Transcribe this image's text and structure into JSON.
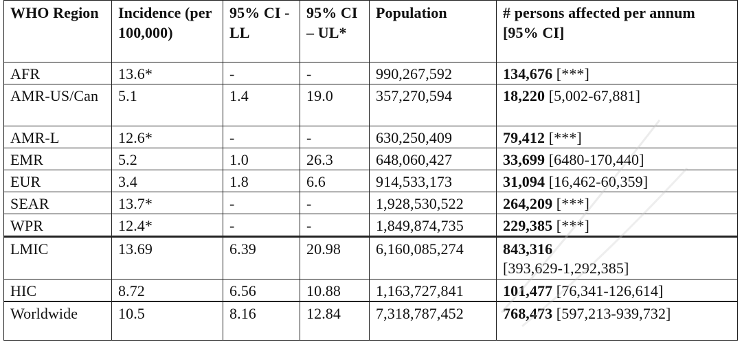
{
  "table": {
    "headers": [
      "WHO Region",
      "Incidence (per 100,000)",
      "95% CI - LL",
      "95% CI – UL*",
      "Population",
      "# persons affected per annum [95% CI]"
    ],
    "rows": [
      {
        "region": "AFR",
        "incidence": "13.6*",
        "ll": "-",
        "ul": "-",
        "population": "990,267,592",
        "affected": "134,676",
        "ci": " [***]"
      },
      {
        "region": "AMR-US/Can",
        "incidence": "5.1",
        "ll": "1.4",
        "ul": "19.0",
        "population": "357,270,594",
        "affected": "18,220",
        "ci": " [5,002-67,881]"
      },
      {
        "region": "AMR-L",
        "incidence": "12.6*",
        "ll": "-",
        "ul": "-",
        "population": "630,250,409",
        "affected": "79,412",
        "ci": " [***]"
      },
      {
        "region": "EMR",
        "incidence": "5.2",
        "ll": "1.0",
        "ul": "26.3",
        "population": "648,060,427",
        "affected": "33,699",
        "ci": " [6480-170,440]"
      },
      {
        "region": "EUR",
        "incidence": "3.4",
        "ll": "1.8",
        "ul": "6.6",
        "population": "914,533,173",
        "affected": "31,094",
        "ci": " [16,462-60,359]"
      },
      {
        "region": "SEAR",
        "incidence": "13.7*",
        "ll": "-",
        "ul": "-",
        "population": "1,928,530,522",
        "affected": "264,209",
        "ci": " [***]"
      },
      {
        "region": "WPR",
        "incidence": "12.4*",
        "ll": "-",
        "ul": "-",
        "population": "1,849,874,735",
        "affected": "229,385",
        "ci": " [***]"
      },
      {
        "region": "LMIC",
        "incidence": "13.69",
        "ll": "6.39",
        "ul": "20.98",
        "population": "6,160,085,274",
        "affected": "843,316",
        "ci": "[393,629-1,292,385]"
      },
      {
        "region": "HIC",
        "incidence": "8.72",
        "ll": "6.56",
        "ul": "10.88",
        "population": "1,163,727,841",
        "affected": "101,477",
        "ci": " [76,341-126,614]"
      },
      {
        "region": "Worldwide",
        "incidence": "10.5",
        "ll": "8.16",
        "ul": "12.84",
        "population": "7,318,787,452",
        "affected": "768,473",
        "ci": " [597,213-939,732]"
      }
    ]
  }
}
